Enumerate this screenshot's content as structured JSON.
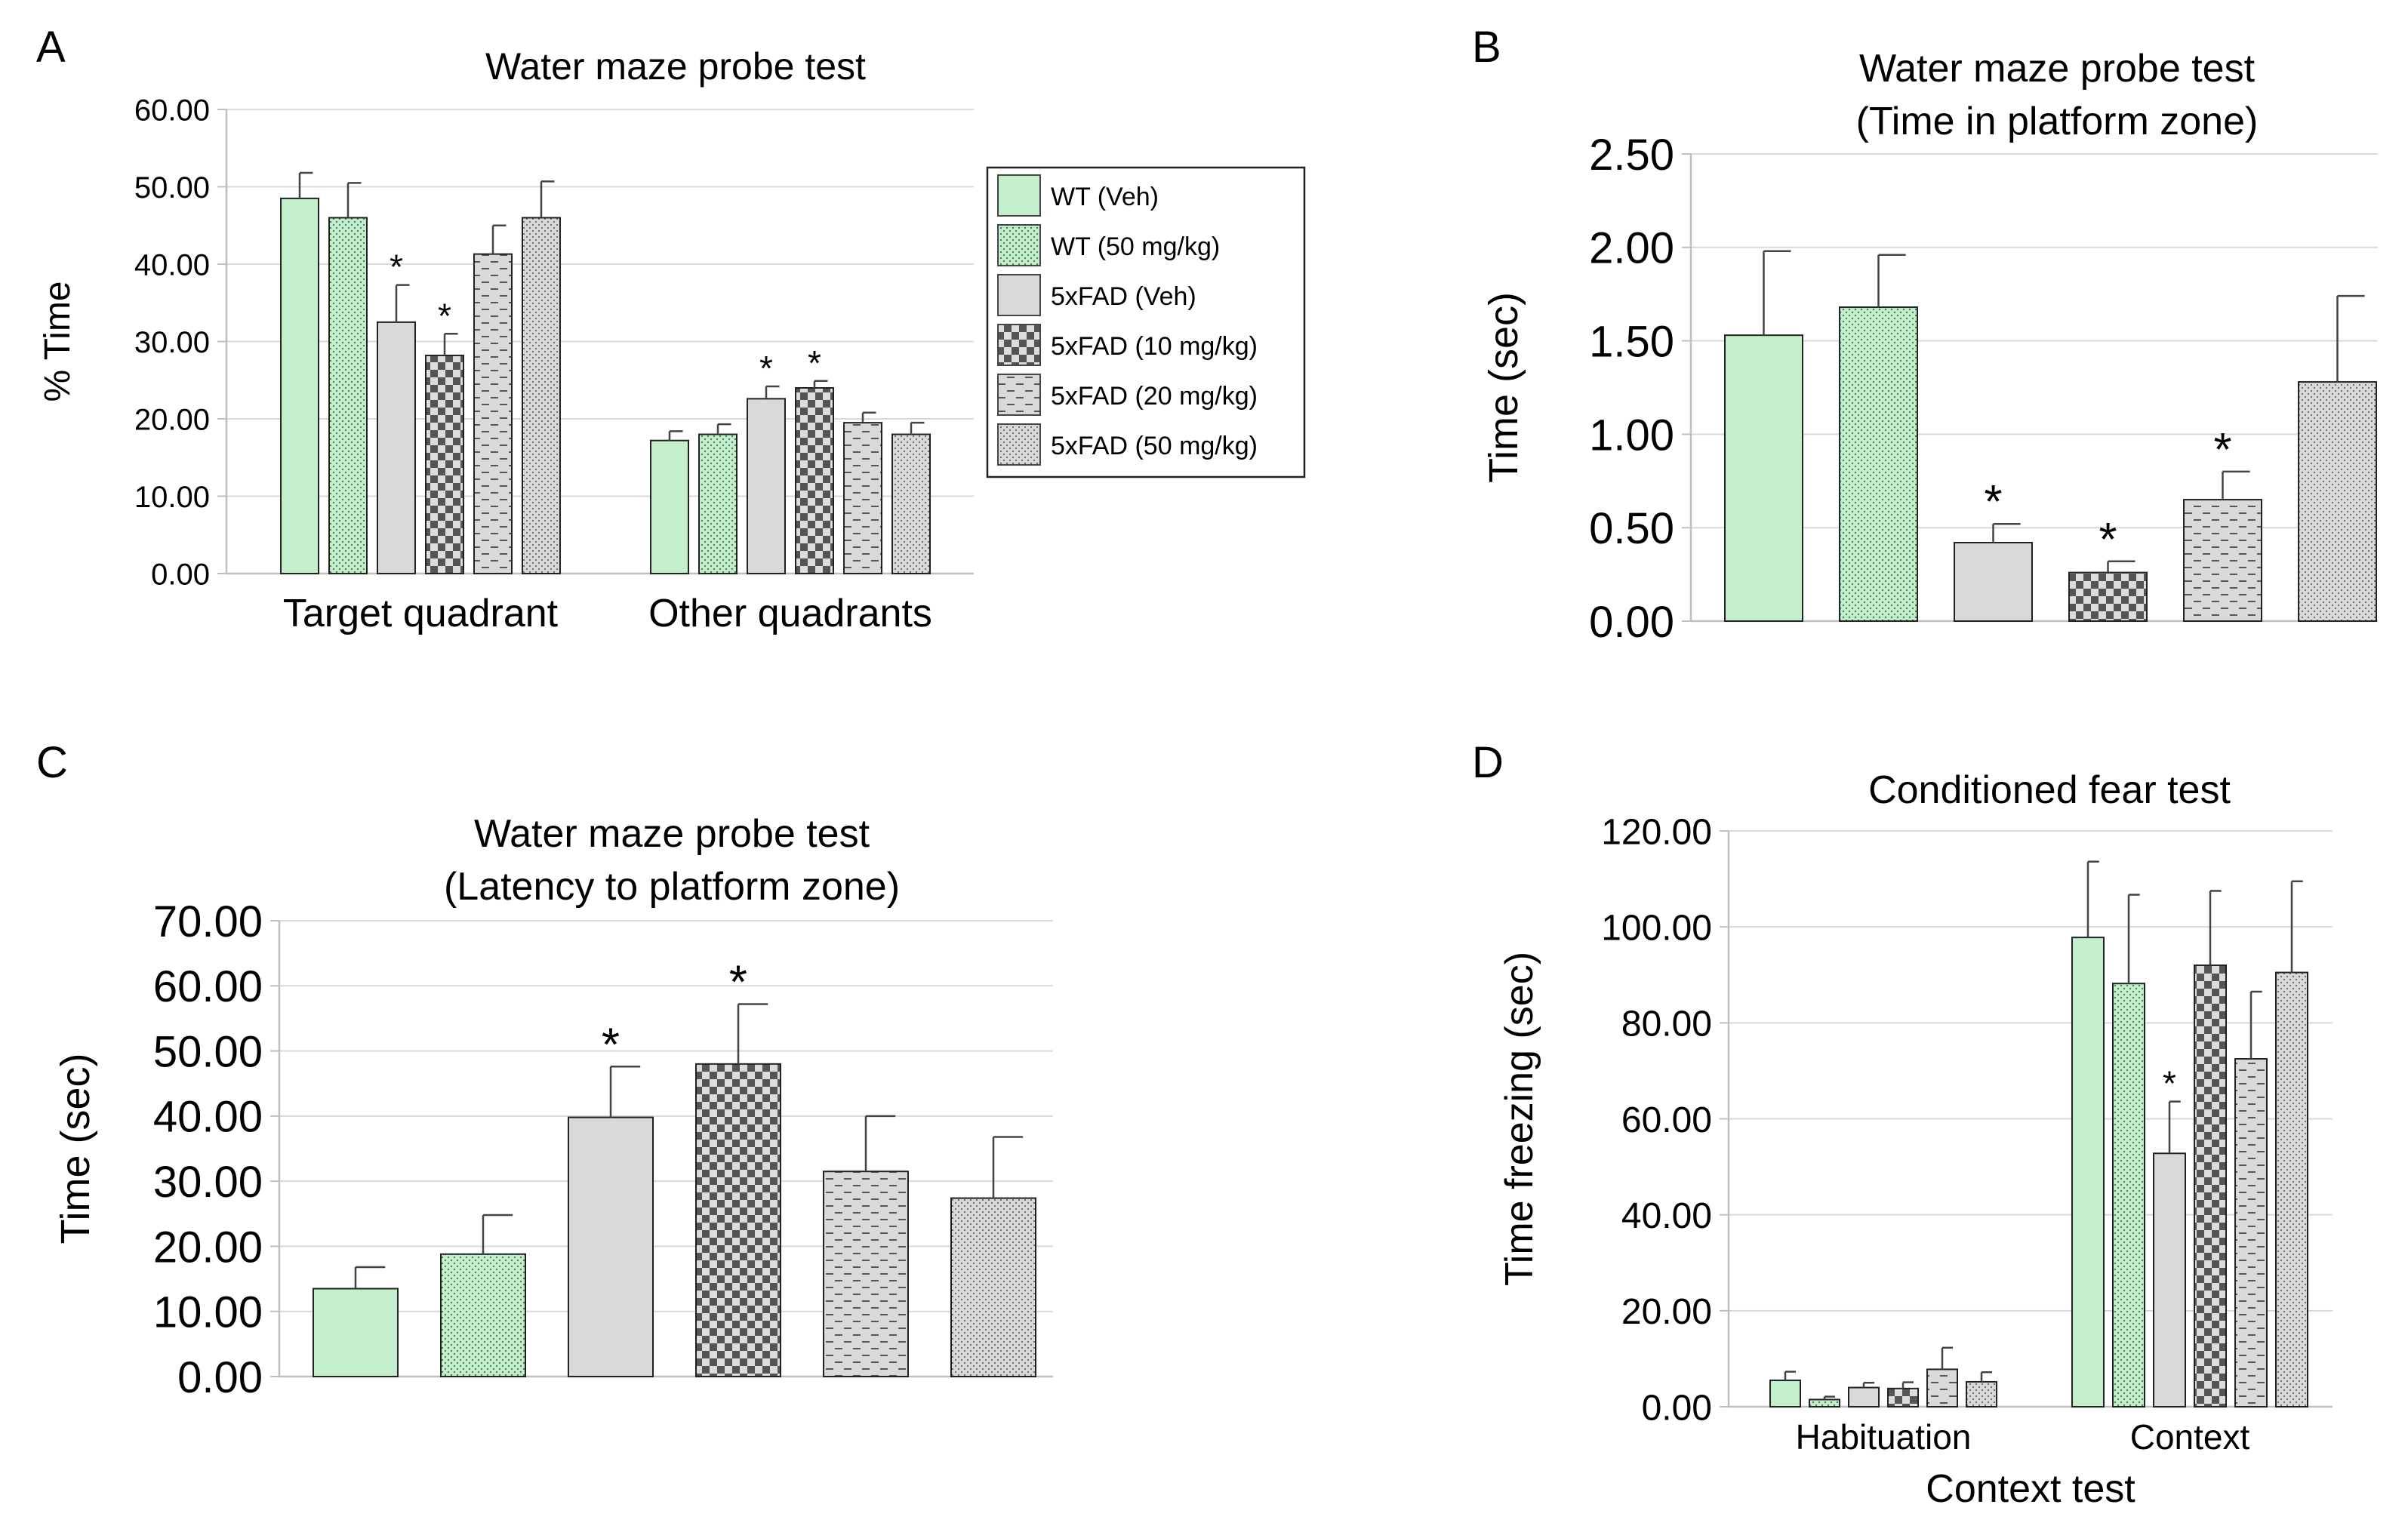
{
  "chart_data": [
    {
      "panel": "A",
      "type": "bar",
      "title": "Water maze probe test",
      "xlabel": "",
      "ylabel": "% Time",
      "ylim": [
        0,
        60
      ],
      "yticks": [
        "0.00",
        "10.00",
        "20.00",
        "30.00",
        "40.00",
        "50.00",
        "60.00"
      ],
      "categories": [
        "Target quadrant",
        "Other quadrants"
      ],
      "series": [
        {
          "name": "WT (Veh)",
          "values": [
            48.5,
            17.2
          ],
          "errors": [
            3.3,
            1.2
          ],
          "significant": [
            false,
            false
          ]
        },
        {
          "name": "WT (50 mg/kg)",
          "values": [
            46.0,
            18.0
          ],
          "errors": [
            4.5,
            1.3
          ],
          "significant": [
            false,
            false
          ]
        },
        {
          "name": "5xFAD (Veh)",
          "values": [
            32.5,
            22.6
          ],
          "errors": [
            4.8,
            1.6
          ],
          "significant": [
            true,
            true
          ]
        },
        {
          "name": "5xFAD (10 mg/kg)",
          "values": [
            28.2,
            24.0
          ],
          "errors": [
            2.8,
            0.9
          ],
          "significant": [
            true,
            true
          ]
        },
        {
          "name": "5xFAD (20 mg/kg)",
          "values": [
            41.3,
            19.5
          ],
          "errors": [
            3.7,
            1.3
          ],
          "significant": [
            false,
            false
          ]
        },
        {
          "name": "5xFAD (50 mg/kg)",
          "values": [
            46.0,
            18.0
          ],
          "errors": [
            4.7,
            1.5
          ],
          "significant": [
            false,
            false
          ]
        }
      ],
      "legend": "right",
      "significance_marker": "*"
    },
    {
      "panel": "B",
      "type": "bar",
      "title": "Water maze probe test",
      "subtitle": "(Time in platform zone)",
      "xlabel": "",
      "ylabel": "Time (sec)",
      "ylim": [
        0,
        2.5
      ],
      "yticks": [
        "0.00",
        "0.50",
        "1.00",
        "1.50",
        "2.00",
        "2.50"
      ],
      "categories": [
        "WT (Veh)",
        "WT (50 mg/kg)",
        "5xFAD (Veh)",
        "5xFAD (10 mg/kg)",
        "5xFAD (20 mg/kg)",
        "5xFAD (50 mg/kg)"
      ],
      "values": [
        1.53,
        1.68,
        0.42,
        0.26,
        0.65,
        1.28
      ],
      "errors": [
        0.45,
        0.28,
        0.1,
        0.06,
        0.15,
        0.46
      ],
      "significant": [
        false,
        false,
        true,
        true,
        true,
        false
      ],
      "significance_marker": "*"
    },
    {
      "panel": "C",
      "type": "bar",
      "title": "Water maze probe test",
      "subtitle": "(Latency to platform zone)",
      "xlabel": "",
      "ylabel": "Time (sec)",
      "ylim": [
        0,
        70
      ],
      "yticks": [
        "0.00",
        "10.00",
        "20.00",
        "30.00",
        "40.00",
        "50.00",
        "60.00",
        "70.00"
      ],
      "categories": [
        "WT (Veh)",
        "WT (50 mg/kg)",
        "5xFAD (Veh)",
        "5xFAD (10 mg/kg)",
        "5xFAD (20 mg/kg)",
        "5xFAD (50 mg/kg)"
      ],
      "values": [
        13.5,
        18.8,
        39.8,
        48.0,
        31.5,
        27.4
      ],
      "errors": [
        3.3,
        6.0,
        7.8,
        9.2,
        8.5,
        9.4
      ],
      "significant": [
        false,
        false,
        true,
        true,
        false,
        false
      ],
      "significance_marker": "*"
    },
    {
      "panel": "D",
      "type": "bar",
      "title": "Conditioned fear test",
      "xlabel": "Context test",
      "ylabel": "Time freezing (sec)",
      "ylim": [
        0,
        120
      ],
      "yticks": [
        "0.00",
        "20.00",
        "40.00",
        "60.00",
        "80.00",
        "100.00",
        "120.00"
      ],
      "categories": [
        "Habituation",
        "Context"
      ],
      "series": [
        {
          "name": "WT (Veh)",
          "values": [
            5.5,
            97.8
          ],
          "errors": [
            1.8,
            15.8
          ],
          "significant": [
            false,
            false
          ]
        },
        {
          "name": "WT (50 mg/kg)",
          "values": [
            1.5,
            88.2
          ],
          "errors": [
            0.6,
            18.5
          ],
          "significant": [
            false,
            false
          ]
        },
        {
          "name": "5xFAD (Veh)",
          "values": [
            4.0,
            52.8
          ],
          "errors": [
            1.0,
            10.8
          ],
          "significant": [
            false,
            true
          ]
        },
        {
          "name": "5xFAD (10 mg/kg)",
          "values": [
            3.8,
            92.0
          ],
          "errors": [
            1.3,
            15.5
          ],
          "significant": [
            false,
            false
          ]
        },
        {
          "name": "5xFAD (20 mg/kg)",
          "values": [
            7.8,
            72.5
          ],
          "errors": [
            4.5,
            14.0
          ],
          "significant": [
            false,
            false
          ]
        },
        {
          "name": "5xFAD (50 mg/kg)",
          "values": [
            5.2,
            90.5
          ],
          "errors": [
            2.0,
            19.0
          ],
          "significant": [
            false,
            false
          ]
        }
      ],
      "significance_marker": "*"
    }
  ],
  "styles": {
    "WT (Veh)": {
      "fill": "#c3efcd",
      "pattern": "solid"
    },
    "WT (50 mg/kg)": {
      "fill": "#c3efcd",
      "pattern": "dots"
    },
    "5xFAD (Veh)": {
      "fill": "#d9d9d9",
      "pattern": "solid"
    },
    "5xFAD (10 mg/kg)": {
      "fill": "#d9d9d9",
      "pattern": "checker"
    },
    "5xFAD (20 mg/kg)": {
      "fill": "#d9d9d9",
      "pattern": "dashes"
    },
    "5xFAD (50 mg/kg)": {
      "fill": "#d9d9d9",
      "pattern": "dots"
    }
  },
  "colors": {
    "axis": "#bfbfbf",
    "bar_stroke": "#222222",
    "error": "#444444",
    "green": "#c3efcd",
    "gray": "#d9d9d9",
    "checker_dark": "#555555"
  }
}
